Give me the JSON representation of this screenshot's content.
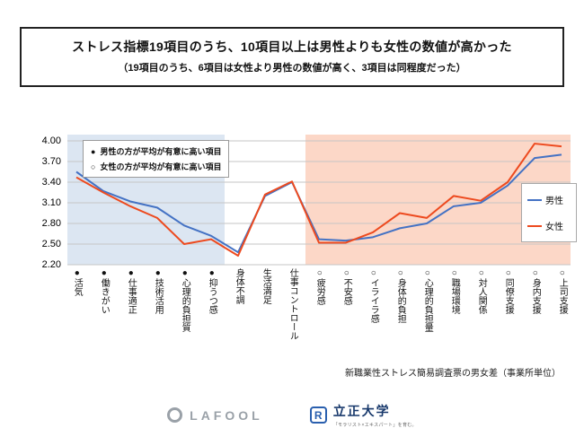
{
  "header": {
    "title": "ストレス指標19項目のうち、10項目以上は男性よりも女性の数値が高かった",
    "subtitle": "（19項目のうち、6項目は女性より男性の数値が高く、3項目は同程度だった）"
  },
  "marker_legend": {
    "items": [
      {
        "marker": "●",
        "label": "男性の方が平均が有意に高い項目"
      },
      {
        "marker": "○",
        "label": "女性の方が平均が有意に高い項目"
      }
    ]
  },
  "caption": "新職業性ストレス簡易調査票の男女差（事業所単位）",
  "footer": {
    "lafool": "LAFOOL",
    "rissho": "立正大学",
    "rissho_icon_letter": "R",
    "rissho_slogan": "「モラリスト×エキスパート」を育む。"
  },
  "chart_data": {
    "type": "line",
    "title": "",
    "categories": [
      {
        "marker": "●",
        "label": "活気"
      },
      {
        "marker": "●",
        "label": "働きがい"
      },
      {
        "marker": "●",
        "label": "仕事適正"
      },
      {
        "marker": "●",
        "label": "技術活用"
      },
      {
        "marker": "●",
        "label": "心理的負担質"
      },
      {
        "marker": "●",
        "label": "抑うつ感"
      },
      {
        "marker": "",
        "label": "身体不調"
      },
      {
        "marker": "",
        "label": "生活満足"
      },
      {
        "marker": "",
        "label": "仕事コントロール"
      },
      {
        "marker": "○",
        "label": "疲労感"
      },
      {
        "marker": "○",
        "label": "不安感"
      },
      {
        "marker": "○",
        "label": "イライラ感"
      },
      {
        "marker": "○",
        "label": "身体的負担"
      },
      {
        "marker": "○",
        "label": "心理的負担量"
      },
      {
        "marker": "○",
        "label": "職場環境"
      },
      {
        "marker": "○",
        "label": "対人関係"
      },
      {
        "marker": "○",
        "label": "同僚支援"
      },
      {
        "marker": "○",
        "label": "身内支援"
      },
      {
        "marker": "○",
        "label": "上司支援"
      }
    ],
    "series": [
      {
        "name": "男性",
        "key": "male",
        "color": "#4472c4",
        "values": [
          3.55,
          3.27,
          3.12,
          3.03,
          2.77,
          2.62,
          2.38,
          3.2,
          3.4,
          2.57,
          2.55,
          2.6,
          2.73,
          2.8,
          3.05,
          3.1,
          3.35,
          3.75,
          3.8
        ]
      },
      {
        "name": "女性",
        "key": "female",
        "color": "#ed4a1f",
        "values": [
          3.47,
          3.25,
          3.05,
          2.88,
          2.5,
          2.57,
          2.33,
          3.22,
          3.41,
          2.52,
          2.52,
          2.67,
          2.95,
          2.88,
          3.2,
          3.13,
          3.4,
          3.96,
          3.92
        ]
      }
    ],
    "yticks": [
      4.0,
      3.7,
      3.4,
      3.1,
      2.8,
      2.5,
      2.2
    ],
    "ylim": [
      2.2,
      4.0
    ],
    "grid": true,
    "legend_position": "right",
    "regions": [
      {
        "from": 0,
        "to": 5,
        "color": "#dce6f2"
      },
      {
        "from": 9,
        "to": 18,
        "color": "#fcd7c7"
      }
    ]
  }
}
